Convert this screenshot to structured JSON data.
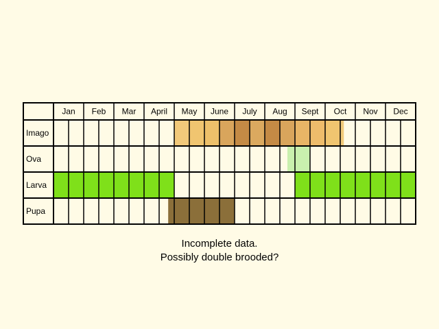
{
  "chart_data": {
    "type": "table",
    "months": [
      "Jan",
      "Feb",
      "Mar",
      "April",
      "May",
      "June",
      "July",
      "Aug",
      "Sept",
      "Oct",
      "Nov",
      "Dec"
    ],
    "rows": [
      {
        "label": "Imago",
        "color": "#f0c97a",
        "periods": [
          {
            "start": 4.0,
            "end": 4.5,
            "color": "#f2c97a"
          },
          {
            "start": 4.5,
            "end": 5.0,
            "color": "#f0c570"
          },
          {
            "start": 5.0,
            "end": 5.5,
            "color": "#edc06a"
          },
          {
            "start": 5.5,
            "end": 6.0,
            "color": "#d9a55c"
          },
          {
            "start": 6.0,
            "end": 6.5,
            "color": "#c48a45"
          },
          {
            "start": 6.5,
            "end": 7.0,
            "color": "#dba95f"
          },
          {
            "start": 7.0,
            "end": 7.5,
            "color": "#c48a45"
          },
          {
            "start": 7.5,
            "end": 8.0,
            "color": "#d9a55c"
          },
          {
            "start": 8.0,
            "end": 8.5,
            "color": "#e8b566"
          },
          {
            "start": 8.5,
            "end": 9.0,
            "color": "#eebc6b"
          },
          {
            "start": 9.0,
            "end": 9.5,
            "color": "#f0c570"
          },
          {
            "start": 9.5,
            "end": 9.62,
            "color": "#f2cb7a"
          }
        ]
      },
      {
        "label": "Ova",
        "color": "#c9f0ae",
        "periods": [
          {
            "start": 7.75,
            "end": 8.5,
            "color": "#c9f0ae"
          }
        ]
      },
      {
        "label": "Larva",
        "color": "#7fe01a",
        "periods": [
          {
            "start": 0.0,
            "end": 4.0,
            "color": "#7fe01a"
          },
          {
            "start": 8.0,
            "end": 12.0,
            "color": "#7fe01a"
          }
        ]
      },
      {
        "label": "Pupa",
        "color": "#8b6f3a",
        "periods": [
          {
            "start": 3.8,
            "end": 6.0,
            "color": "#8b6f3a"
          }
        ]
      }
    ]
  },
  "notes": [
    "Incomplete data.",
    "Possibly double brooded?"
  ]
}
